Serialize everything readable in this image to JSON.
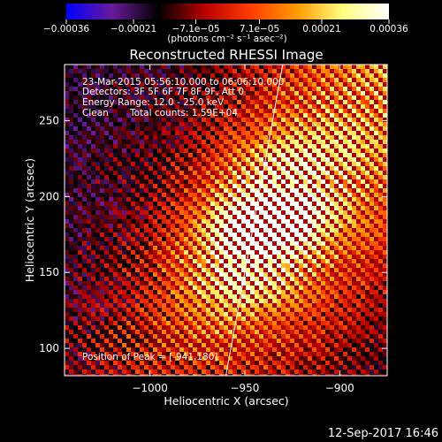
{
  "chart_data": {
    "type": "heatmap",
    "title": "Reconstructed RHESSI Image",
    "xlabel": "Heliocentric X (arcsec)",
    "ylabel": "Heliocentric Y (arcsec)",
    "xlim": [
      -1045,
      -875
    ],
    "ylim": [
      82,
      287
    ],
    "x_ticks": [
      -1000,
      -950,
      -900
    ],
    "x_tick_labels": [
      "−1000",
      "−950",
      "−900"
    ],
    "y_ticks": [
      100,
      150,
      200,
      250
    ],
    "y_tick_labels": [
      "100",
      "150",
      "200",
      "250"
    ],
    "colorbar": {
      "range": [
        -0.00036,
        0.00036
      ],
      "ticks": [
        -0.00036,
        -0.00021,
        -7.1e-05,
        7.1e-05,
        0.00021,
        0.00036
      ],
      "tick_labels": [
        "−0.00036",
        "−0.00021",
        "−7.1e−05",
        "7.1e−05",
        "0.00021",
        "0.00036"
      ],
      "unit_label": "(photons cm⁻² s⁻¹ asec⁻²)",
      "colors": [
        "#0000ff",
        "#6a1a9a",
        "#000000",
        "#b80000",
        "#ff3c00",
        "#ff9a00",
        "#ffff80",
        "#ffffff"
      ]
    },
    "annotations": [
      "23-Mar-2015 05:56:10.000 to 06:06:10.000",
      "Detectors: 3F 5F 6F 7F 8F 9F, Att 0",
      "Energy Range: 12.0 - 25.0 keV",
      "Clean",
      "Total counts: 1.59E+04"
    ],
    "peak_label": "Position of Peak = [-941,180]",
    "peak": [
      -941,
      180
    ],
    "limb_line": [
      [
        -960,
        82
      ],
      [
        -930,
        287
      ]
    ],
    "grid": false,
    "timestamp": "12-Sep-2017 16:46"
  }
}
